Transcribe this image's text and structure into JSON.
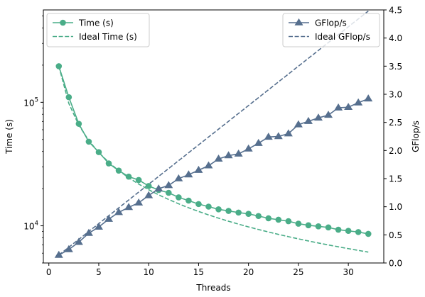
{
  "chart_data": {
    "type": "line",
    "xlabel": "Threads",
    "ylabel_left": "Time (s)",
    "ylabel_right": "GFlop/s",
    "xlim": [
      -0.55,
      33.55
    ],
    "x_ticks": [
      0,
      5,
      10,
      15,
      20,
      25,
      30
    ],
    "x_tick_labels": [
      "0",
      "5",
      "10",
      "15",
      "20",
      "25",
      "30"
    ],
    "left_axis": {
      "scale": "log",
      "ylim": [
        5000,
        560000
      ],
      "ticks": [
        {
          "value": 10000,
          "label": "10",
          "exp": "4"
        },
        {
          "value": 100000,
          "label": "10",
          "exp": "5"
        }
      ]
    },
    "right_axis": {
      "scale": "linear",
      "ylim": [
        0.0,
        4.5
      ],
      "ticks": [
        0.0,
        0.5,
        1.0,
        1.5,
        2.0,
        2.5,
        3.0,
        3.5,
        4.0,
        4.5
      ],
      "tick_labels": [
        "0.0",
        "0.5",
        "1.0",
        "1.5",
        "2.0",
        "2.5",
        "3.0",
        "3.5",
        "4.0",
        "4.5"
      ]
    },
    "x": [
      1,
      2,
      3,
      4,
      5,
      6,
      7,
      8,
      9,
      10,
      11,
      12,
      13,
      14,
      15,
      16,
      17,
      18,
      19,
      20,
      21,
      22,
      23,
      24,
      25,
      26,
      27,
      28,
      29,
      30,
      31,
      32
    ],
    "series": [
      {
        "name": "Time (s)",
        "axis": "left",
        "style": "solid",
        "marker": "circle",
        "color": "#4aad88",
        "values": [
          196000,
          110000,
          67000,
          48000,
          39500,
          32000,
          28000,
          25000,
          23500,
          21000,
          19500,
          18500,
          17000,
          16000,
          15000,
          14300,
          13600,
          13200,
          12800,
          12500,
          12000,
          11500,
          11200,
          10900,
          10400,
          10100,
          9900,
          9700,
          9300,
          9100,
          8900,
          8600
        ]
      },
      {
        "name": "Ideal Time (s)",
        "axis": "left",
        "style": "dashed",
        "marker": "none",
        "color": "#4aad88",
        "values": [
          196000,
          98000,
          65333,
          49000,
          39200,
          32667,
          28000,
          24500,
          21778,
          19600,
          17818,
          16333,
          15077,
          14000,
          13067,
          12250,
          11529,
          10889,
          10316,
          9800,
          9333,
          8909,
          8522,
          8167,
          7840,
          7538,
          7259,
          7000,
          6759,
          6533,
          6323,
          6125
        ]
      },
      {
        "name": "GFlop/s",
        "axis": "right",
        "style": "solid",
        "marker": "triangle",
        "color": "#566f8e",
        "values": [
          0.14,
          0.24,
          0.37,
          0.53,
          0.64,
          0.78,
          0.9,
          0.99,
          1.07,
          1.2,
          1.32,
          1.38,
          1.5,
          1.57,
          1.65,
          1.73,
          1.85,
          1.91,
          1.94,
          2.03,
          2.13,
          2.24,
          2.25,
          2.3,
          2.46,
          2.52,
          2.58,
          2.63,
          2.76,
          2.77,
          2.85,
          2.92
        ]
      },
      {
        "name": "Ideal GFlop/s",
        "axis": "right",
        "style": "dashed",
        "marker": "none",
        "color": "#566f8e",
        "values": [
          0.14,
          0.28,
          0.42,
          0.56,
          0.7,
          0.84,
          0.98,
          1.12,
          1.26,
          1.4,
          1.54,
          1.68,
          1.82,
          1.96,
          2.1,
          2.24,
          2.38,
          2.52,
          2.66,
          2.8,
          2.94,
          3.08,
          3.22,
          3.36,
          3.5,
          3.64,
          3.78,
          3.92,
          4.06,
          4.2,
          4.34,
          4.48
        ]
      }
    ],
    "legends": [
      {
        "placement": "upper-left",
        "entries": [
          "Time (s)",
          "Ideal Time (s)"
        ]
      },
      {
        "placement": "upper-right",
        "entries": [
          "GFlop/s",
          "Ideal GFlop/s"
        ]
      }
    ],
    "grid": false
  }
}
